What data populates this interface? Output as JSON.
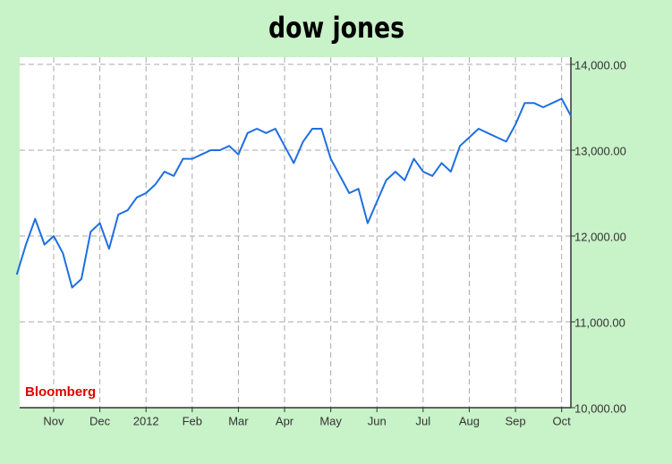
{
  "chart_data": {
    "type": "line",
    "title": "dow jones",
    "source": "Bloomberg",
    "categories": [
      null,
      null,
      null,
      null,
      "Nov",
      null,
      null,
      null,
      null,
      "Dec",
      null,
      null,
      null,
      null,
      "2012",
      null,
      null,
      null,
      null,
      "Feb",
      null,
      null,
      null,
      null,
      "Mar",
      null,
      null,
      null,
      null,
      "Apr",
      null,
      null,
      null,
      null,
      "May",
      null,
      null,
      null,
      null,
      "Jun",
      null,
      null,
      null,
      null,
      "Jul",
      null,
      null,
      null,
      null,
      "Aug",
      null,
      null,
      null,
      null,
      "Sep",
      null,
      null,
      null,
      null,
      "Oct",
      null
    ],
    "values": [
      11550,
      11900,
      12200,
      11900,
      12000,
      11800,
      11400,
      11500,
      12050,
      12150,
      11850,
      12250,
      12300,
      12450,
      12500,
      12600,
      12750,
      12700,
      12900,
      12900,
      12950,
      13000,
      13000,
      13050,
      12950,
      13200,
      13250,
      13200,
      13250,
      13050,
      12850,
      13100,
      13250,
      13250,
      12900,
      12700,
      12500,
      12550,
      12150,
      12400,
      12650,
      12750,
      12650,
      12900,
      12750,
      12700,
      12850,
      12750,
      13050,
      13150,
      13250,
      13200,
      13150,
      13100,
      13300,
      13550,
      13550,
      13500,
      13550,
      13600,
      13400
    ],
    "color": "#1e6fe0",
    "ylim": [
      10000,
      14000
    ],
    "yticks": [
      {
        "value": 10000,
        "label": "10,000.00"
      },
      {
        "value": 11000,
        "label": "11,000.00"
      },
      {
        "value": 12000,
        "label": "12,000.00"
      },
      {
        "value": 13000,
        "label": "13,000.00"
      },
      {
        "value": 14000,
        "label": "14,000.00"
      }
    ],
    "grid": true
  }
}
